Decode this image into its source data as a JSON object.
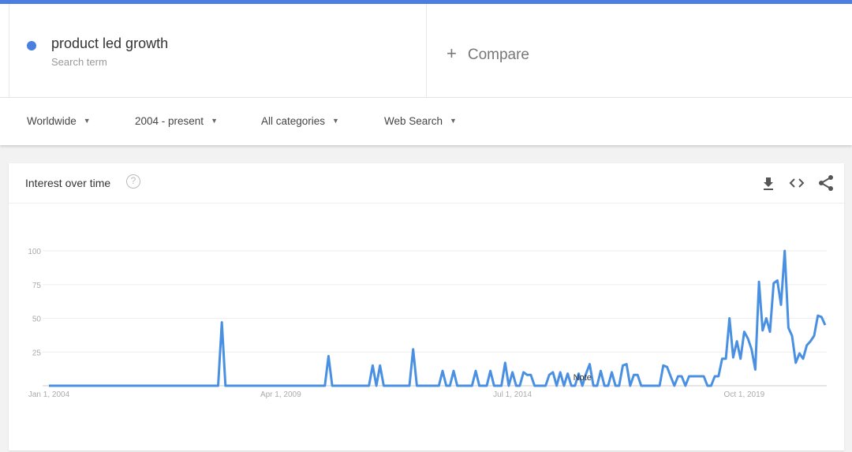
{
  "term": {
    "name": "product led growth",
    "label": "Search term",
    "color": "#4a7fe0"
  },
  "compare": {
    "icon": "plus-icon",
    "label": "Compare"
  },
  "filters": [
    {
      "label": "Worldwide"
    },
    {
      "label": "2004 - present"
    },
    {
      "label": "All categories"
    },
    {
      "label": "Web Search"
    }
  ],
  "card": {
    "title": "Interest over time",
    "help_icon": "question-icon",
    "help_glyph": "?",
    "actions": [
      "download-icon",
      "embed-icon",
      "share-icon"
    ]
  },
  "chart_data": {
    "type": "line",
    "title": "",
    "xlabel": "",
    "ylabel": "",
    "ylim": [
      0,
      100
    ],
    "yticks": [
      "25",
      "50",
      "75",
      "100"
    ],
    "xticks": [
      {
        "label": "Jan 1, 2004",
        "month": "2004-01"
      },
      {
        "label": "Apr 1, 2009",
        "month": "2009-04"
      },
      {
        "label": "Jul 1, 2014",
        "month": "2014-07"
      },
      {
        "label": "Oct 1, 2019",
        "month": "2019-10"
      }
    ],
    "grid": true,
    "annotation": {
      "label": "Note",
      "month": "2016-02"
    },
    "color": "#4a90e2",
    "series": [
      {
        "frequency": "monthly",
        "start": "2004-01",
        "values": [
          0,
          0,
          0,
          0,
          0,
          0,
          0,
          0,
          0,
          0,
          0,
          0,
          0,
          0,
          0,
          0,
          0,
          0,
          0,
          0,
          0,
          0,
          0,
          0,
          0,
          0,
          0,
          0,
          0,
          0,
          0,
          0,
          0,
          0,
          0,
          0,
          0,
          0,
          0,
          0,
          0,
          0,
          0,
          0,
          0,
          0,
          0,
          47,
          0,
          0,
          0,
          0,
          0,
          0,
          0,
          0,
          0,
          0,
          0,
          0,
          0,
          0,
          0,
          0,
          0,
          0,
          0,
          0,
          0,
          0,
          0,
          0,
          0,
          0,
          0,
          0,
          22,
          0,
          0,
          0,
          0,
          0,
          0,
          0,
          0,
          0,
          0,
          0,
          15,
          0,
          15,
          0,
          0,
          0,
          0,
          0,
          0,
          0,
          0,
          27,
          0,
          0,
          0,
          0,
          0,
          0,
          0,
          11,
          0,
          0,
          11,
          0,
          0,
          0,
          0,
          0,
          11,
          0,
          0,
          0,
          11,
          0,
          0,
          0,
          17,
          0,
          10,
          0,
          0,
          10,
          8,
          8,
          0,
          0,
          0,
          0,
          8,
          10,
          0,
          10,
          0,
          9,
          0,
          0,
          9,
          0,
          9,
          16,
          0,
          0,
          11,
          0,
          0,
          10,
          0,
          0,
          15,
          16,
          0,
          8,
          8,
          0,
          0,
          0,
          0,
          0,
          0,
          15,
          14,
          7,
          0,
          7,
          7,
          0,
          7,
          7,
          7,
          7,
          7,
          0,
          0,
          7,
          7,
          20,
          20,
          50,
          21,
          33,
          20,
          40,
          35,
          27,
          12,
          77,
          41,
          50,
          40,
          76,
          78,
          60,
          100,
          43,
          37,
          17,
          24,
          20,
          30,
          33,
          37,
          52,
          51,
          45
        ]
      }
    ]
  }
}
